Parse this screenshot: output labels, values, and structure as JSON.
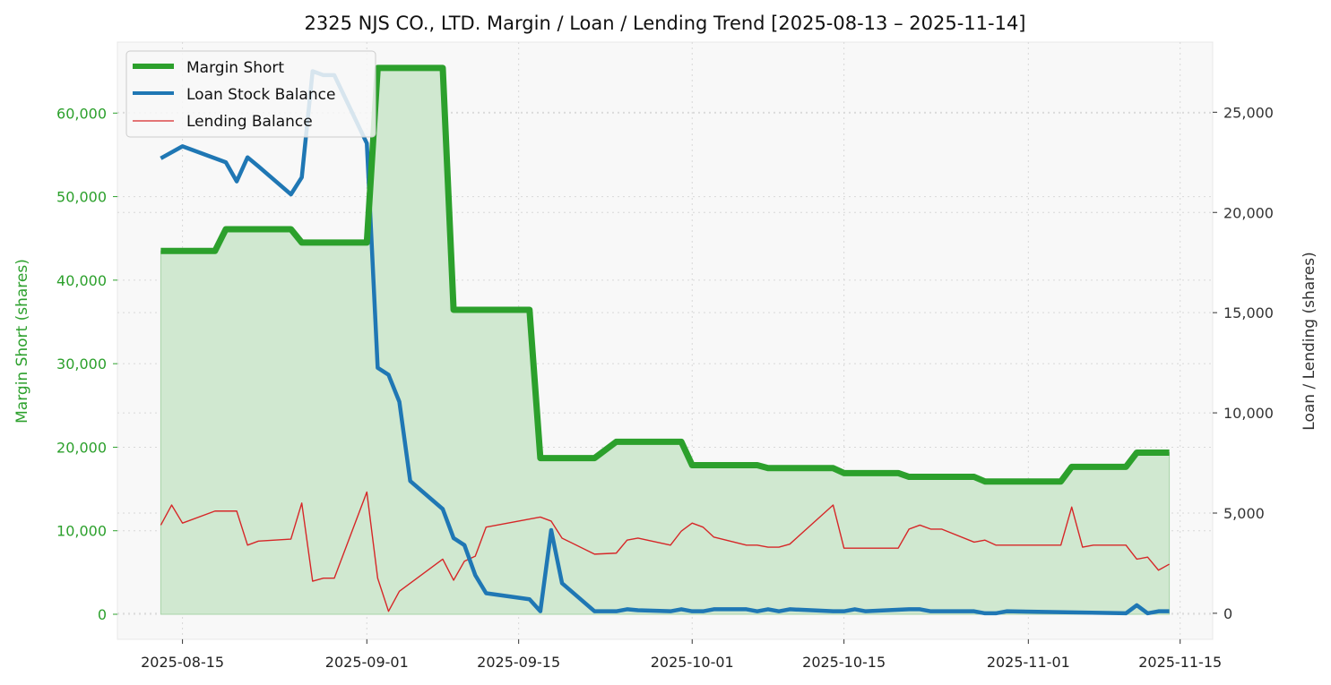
{
  "chart_data": {
    "type": "line",
    "title": "2325 NJS CO., LTD. Margin / Loan / Lending Trend [2025-08-13 – 2025-11-14]",
    "xlabel": "",
    "ylabel_left": "Margin Short (shares)",
    "ylabel_right": "Loan / Lending (shares)",
    "x_range": [
      "2025-08-09",
      "2025-11-18"
    ],
    "ylim_left": [
      -3000,
      68500
    ],
    "ylim_right": [
      -1300,
      28500
    ],
    "x_ticks": [
      "2025-08-15",
      "2025-09-01",
      "2025-09-15",
      "2025-10-01",
      "2025-10-15",
      "2025-11-01",
      "2025-11-15"
    ],
    "y_ticks_left": [
      0,
      10000,
      20000,
      30000,
      40000,
      50000,
      60000
    ],
    "y_tick_labels_left": [
      "0",
      "10,000",
      "20,000",
      "30,000",
      "40,000",
      "50,000",
      "60,000"
    ],
    "y_ticks_right": [
      0,
      5000,
      10000,
      15000,
      20000,
      25000
    ],
    "y_tick_labels_right": [
      "0",
      "5,000",
      "10,000",
      "15,000",
      "20,000",
      "25,000"
    ],
    "grid": true,
    "legend_placement": "top-left",
    "colors": {
      "margin": "#2ca02c",
      "loan": "#1f77b4",
      "lending": "#d62728",
      "fill": "#d0e8d0"
    },
    "series": [
      {
        "name": "Margin Short",
        "axis": "left",
        "points": [
          [
            "2025-08-13",
            43500
          ],
          [
            "2025-08-18",
            43500
          ],
          [
            "2025-08-19",
            46100
          ],
          [
            "2025-08-25",
            46100
          ],
          [
            "2025-08-26",
            44500
          ],
          [
            "2025-09-01",
            44500
          ],
          [
            "2025-09-02",
            65400
          ],
          [
            "2025-09-08",
            65400
          ],
          [
            "2025-09-09",
            36450
          ],
          [
            "2025-09-16",
            36450
          ],
          [
            "2025-09-17",
            18700
          ],
          [
            "2025-09-22",
            18700
          ],
          [
            "2025-09-24",
            20650
          ],
          [
            "2025-09-30",
            20650
          ],
          [
            "2025-10-01",
            17850
          ],
          [
            "2025-10-07",
            17850
          ],
          [
            "2025-10-08",
            17500
          ],
          [
            "2025-10-14",
            17500
          ],
          [
            "2025-10-15",
            16900
          ],
          [
            "2025-10-20",
            16900
          ],
          [
            "2025-10-21",
            16450
          ],
          [
            "2025-10-27",
            16450
          ],
          [
            "2025-10-28",
            15900
          ],
          [
            "2025-11-04",
            15900
          ],
          [
            "2025-11-05",
            17650
          ],
          [
            "2025-11-10",
            17650
          ],
          [
            "2025-11-11",
            19350
          ],
          [
            "2025-11-14",
            19350
          ]
        ]
      },
      {
        "name": "Loan Stock Balance",
        "axis": "right",
        "points": [
          [
            "2025-08-13",
            22700
          ],
          [
            "2025-08-15",
            23300
          ],
          [
            "2025-08-19",
            22500
          ],
          [
            "2025-08-20",
            21550
          ],
          [
            "2025-08-21",
            22750
          ],
          [
            "2025-08-22",
            22300
          ],
          [
            "2025-08-25",
            20900
          ],
          [
            "2025-08-26",
            21750
          ],
          [
            "2025-08-27",
            27050
          ],
          [
            "2025-08-28",
            26850
          ],
          [
            "2025-08-29",
            26850
          ],
          [
            "2025-09-01",
            23450
          ],
          [
            "2025-09-02",
            12250
          ],
          [
            "2025-09-03",
            11900
          ],
          [
            "2025-09-04",
            10550
          ],
          [
            "2025-09-05",
            6600
          ],
          [
            "2025-09-08",
            5200
          ],
          [
            "2025-09-09",
            3750
          ],
          [
            "2025-09-10",
            3400
          ],
          [
            "2025-09-11",
            1900
          ],
          [
            "2025-09-12",
            1000
          ],
          [
            "2025-09-16",
            700
          ],
          [
            "2025-09-17",
            100
          ],
          [
            "2025-09-18",
            4150
          ],
          [
            "2025-09-19",
            1500
          ],
          [
            "2025-09-22",
            100
          ],
          [
            "2025-09-24",
            100
          ],
          [
            "2025-09-25",
            200
          ],
          [
            "2025-09-26",
            150
          ],
          [
            "2025-09-29",
            100
          ],
          [
            "2025-09-30",
            200
          ],
          [
            "2025-10-01",
            100
          ],
          [
            "2025-10-02",
            100
          ],
          [
            "2025-10-03",
            200
          ],
          [
            "2025-10-06",
            200
          ],
          [
            "2025-10-07",
            100
          ],
          [
            "2025-10-08",
            200
          ],
          [
            "2025-10-09",
            100
          ],
          [
            "2025-10-10",
            200
          ],
          [
            "2025-10-14",
            100
          ],
          [
            "2025-10-15",
            100
          ],
          [
            "2025-10-16",
            200
          ],
          [
            "2025-10-17",
            100
          ],
          [
            "2025-10-21",
            200
          ],
          [
            "2025-10-22",
            200
          ],
          [
            "2025-10-23",
            100
          ],
          [
            "2025-10-27",
            100
          ],
          [
            "2025-10-28",
            0
          ],
          [
            "2025-10-29",
            0
          ],
          [
            "2025-10-30",
            100
          ],
          [
            "2025-11-10",
            0
          ],
          [
            "2025-11-11",
            400
          ],
          [
            "2025-11-12",
            0
          ],
          [
            "2025-11-13",
            100
          ],
          [
            "2025-11-14",
            100
          ]
        ]
      },
      {
        "name": "Lending Balance",
        "axis": "right",
        "points": [
          [
            "2025-08-13",
            4400
          ],
          [
            "2025-08-14",
            5400
          ],
          [
            "2025-08-15",
            4500
          ],
          [
            "2025-08-18",
            5100
          ],
          [
            "2025-08-20",
            5100
          ],
          [
            "2025-08-21",
            3400
          ],
          [
            "2025-08-22",
            3600
          ],
          [
            "2025-08-25",
            3700
          ],
          [
            "2025-08-26",
            5500
          ],
          [
            "2025-08-27",
            1600
          ],
          [
            "2025-08-28",
            1750
          ],
          [
            "2025-08-29",
            1750
          ],
          [
            "2025-09-01",
            6050
          ],
          [
            "2025-09-02",
            1750
          ],
          [
            "2025-09-03",
            100
          ],
          [
            "2025-09-04",
            1100
          ],
          [
            "2025-09-08",
            2700
          ],
          [
            "2025-09-09",
            1650
          ],
          [
            "2025-09-10",
            2600
          ],
          [
            "2025-09-11",
            2850
          ],
          [
            "2025-09-12",
            4300
          ],
          [
            "2025-09-17",
            4800
          ],
          [
            "2025-09-18",
            4600
          ],
          [
            "2025-09-19",
            3750
          ],
          [
            "2025-09-22",
            2950
          ],
          [
            "2025-09-24",
            3000
          ],
          [
            "2025-09-25",
            3650
          ],
          [
            "2025-09-26",
            3750
          ],
          [
            "2025-09-29",
            3400
          ],
          [
            "2025-09-30",
            4100
          ],
          [
            "2025-10-01",
            4500
          ],
          [
            "2025-10-02",
            4300
          ],
          [
            "2025-10-03",
            3800
          ],
          [
            "2025-10-06",
            3400
          ],
          [
            "2025-10-07",
            3400
          ],
          [
            "2025-10-08",
            3300
          ],
          [
            "2025-10-09",
            3300
          ],
          [
            "2025-10-10",
            3450
          ],
          [
            "2025-10-14",
            5400
          ],
          [
            "2025-10-15",
            3250
          ],
          [
            "2025-10-20",
            3250
          ],
          [
            "2025-10-21",
            4200
          ],
          [
            "2025-10-22",
            4400
          ],
          [
            "2025-10-23",
            4200
          ],
          [
            "2025-10-24",
            4200
          ],
          [
            "2025-10-27",
            3550
          ],
          [
            "2025-10-28",
            3650
          ],
          [
            "2025-10-29",
            3400
          ],
          [
            "2025-11-04",
            3400
          ],
          [
            "2025-11-05",
            5300
          ],
          [
            "2025-11-06",
            3300
          ],
          [
            "2025-11-07",
            3400
          ],
          [
            "2025-11-10",
            3400
          ],
          [
            "2025-11-11",
            2700
          ],
          [
            "2025-11-12",
            2800
          ],
          [
            "2025-11-13",
            2150
          ],
          [
            "2025-11-14",
            2450
          ]
        ]
      }
    ]
  }
}
